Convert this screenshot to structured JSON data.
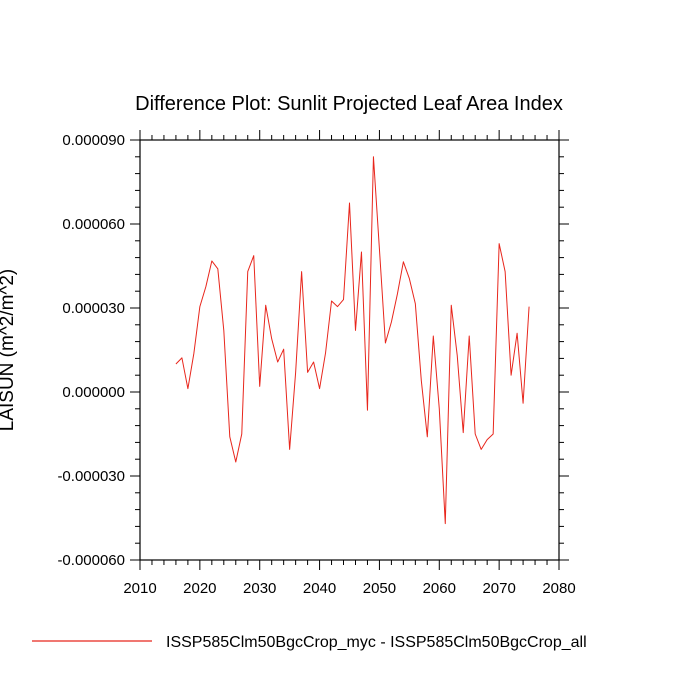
{
  "chart_data": {
    "type": "line",
    "title": "Difference Plot: Sunlit Projected Leaf Area Index",
    "xlabel": "",
    "ylabel": "LAISUN  (m^2/m^2)",
    "xlim": [
      2010,
      2080
    ],
    "ylim": [
      -6e-05,
      9e-05
    ],
    "x_ticks": [
      2010,
      2020,
      2030,
      2040,
      2050,
      2060,
      2070,
      2080
    ],
    "x_tick_labels": [
      "2010",
      "2020",
      "2030",
      "2040",
      "2050",
      "2060",
      "2070",
      "2080"
    ],
    "y_ticks": [
      -6e-05,
      -3e-05,
      0,
      3e-05,
      6e-05,
      9e-05
    ],
    "y_tick_labels": [
      "-0.000060",
      "-0.000030",
      "0.000000",
      "0.000030",
      "0.000060",
      "0.000090"
    ],
    "grid": false,
    "legend_position": "bottom",
    "series": [
      {
        "name": "ISSP585Clm50BgcCrop_myc - ISSP585Clm50BgcCrop_all",
        "color": "#e8261c",
        "x": [
          2016,
          2017,
          2018,
          2019,
          2020,
          2021,
          2022,
          2023,
          2024,
          2025,
          2026,
          2027,
          2028,
          2029,
          2030,
          2031,
          2032,
          2033,
          2034,
          2035,
          2036,
          2037,
          2038,
          2039,
          2040,
          2041,
          2042,
          2043,
          2044,
          2045,
          2046,
          2047,
          2048,
          2049,
          2050,
          2051,
          2052,
          2053,
          2054,
          2055,
          2056,
          2057,
          2058,
          2059,
          2060,
          2061,
          2062,
          2063,
          2064,
          2065,
          2066,
          2067,
          2068,
          2069,
          2070,
          2071,
          2072,
          2073,
          2074,
          2075
        ],
        "y": [
          1e-05,
          1.22e-05,
          1.2e-06,
          1.38e-05,
          3.05e-05,
          3.76e-05,
          4.68e-05,
          4.4e-05,
          2.2e-05,
          -1.6e-05,
          -2.5e-05,
          -1.5e-05,
          4.3e-05,
          4.87e-05,
          2e-06,
          3.1e-05,
          1.9e-05,
          1.07e-05,
          1.53e-05,
          -2.05e-05,
          7e-06,
          4.3e-05,
          7e-06,
          1.07e-05,
          1.2e-06,
          1.4e-05,
          3.25e-05,
          3.05e-05,
          3.3e-05,
          6.75e-05,
          2.2e-05,
          5e-05,
          -6.5e-06,
          8.4e-05,
          5.1e-05,
          1.75e-05,
          2.5e-05,
          3.5e-05,
          4.65e-05,
          4.05e-05,
          3.15e-05,
          4e-06,
          -1.6e-05,
          2e-05,
          -6e-06,
          -4.7e-05,
          3.1e-05,
          1.3e-05,
          -1.45e-05,
          2e-05,
          -1.5e-05,
          -2.05e-05,
          -1.7e-05,
          -1.5e-05,
          5.3e-05,
          4.3e-05,
          6e-06,
          2.1e-05,
          -4e-06,
          3.05e-05
        ]
      }
    ]
  }
}
